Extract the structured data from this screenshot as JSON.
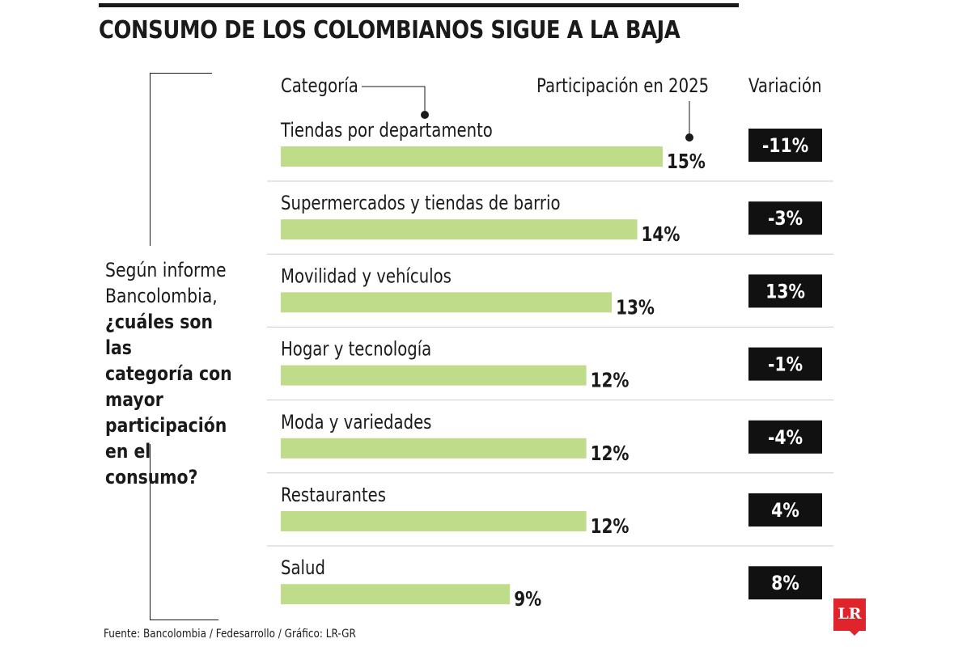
{
  "title": "CONSUMO DE LOS COLOMBIANOS SIGUE A LA BAJA",
  "question": {
    "intro_lines": [
      "Según informe",
      "Bancolombia,"
    ],
    "bold_lines": [
      "¿cuáles son las",
      "categoría con",
      "mayor",
      "participación",
      "en el consumo?"
    ]
  },
  "headers": {
    "category": "Categoría",
    "participation": "Participación en 2025",
    "variation": "Variación"
  },
  "source": "Fuente: Bancolombia / Fedesarrollo / Gráfico: LR-GR",
  "logo_text": "LR",
  "colors": {
    "bar": "#bfdc8a",
    "variation_box": "#111111",
    "variation_text": "#ffffff",
    "logo": "#e0242b",
    "divider": "#cccccc"
  },
  "chart_data": {
    "type": "bar",
    "orientation": "horizontal",
    "categories": [
      "Tiendas por departamento",
      "Supermercados y tiendas de barrio",
      "Movilidad y vehículos",
      "Hogar y tecnología",
      "Moda y variedades",
      "Restaurantes",
      "Salud"
    ],
    "values": [
      15,
      14,
      13,
      12,
      12,
      12,
      9
    ],
    "value_labels": [
      "15%",
      "14%",
      "13%",
      "12%",
      "12%",
      "12%",
      "9%"
    ],
    "variation_labels": [
      "-11%",
      "-3%",
      "13%",
      "-1%",
      "-4%",
      "4%",
      "8%"
    ],
    "variation_values": [
      -11,
      -3,
      13,
      -1,
      -4,
      4,
      8
    ],
    "unit": "%",
    "xlim": [
      0,
      15
    ],
    "grid": false,
    "legend": "none"
  }
}
